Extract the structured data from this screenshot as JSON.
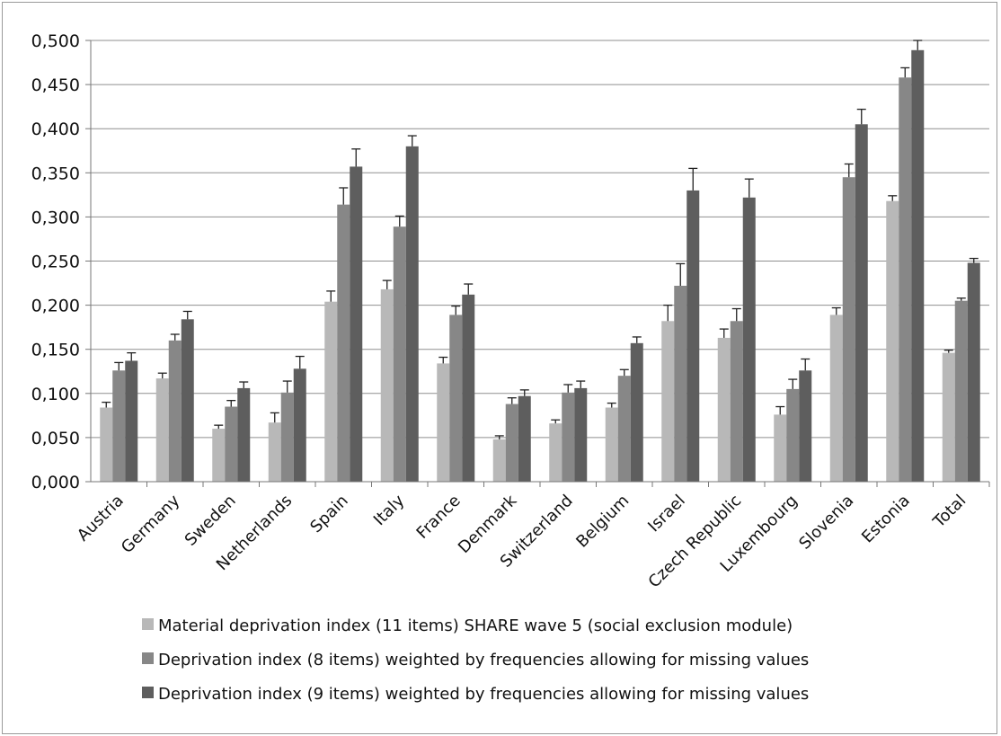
{
  "chart_data": {
    "type": "bar",
    "title": "",
    "xlabel": "",
    "ylabel": "",
    "ylim": [
      0,
      0.5
    ],
    "yticks": [
      "0,000",
      "0,050",
      "0,100",
      "0,150",
      "0,200",
      "0,250",
      "0,300",
      "0,350",
      "0,400",
      "0,450",
      "0,500"
    ],
    "grid": "horizontal",
    "legend_position": "bottom",
    "error_bars": true,
    "categories": [
      "Austria",
      "Germany",
      "Sweden",
      "Netherlands",
      "Spain",
      "Italy",
      "France",
      "Denmark",
      "Switzerland",
      "Belgium",
      "Israel",
      "Czech Republic",
      "Luxembourg",
      "Slovenia",
      "Estonia",
      "Total"
    ],
    "series": [
      {
        "name": "Material deprivation index (11 items) SHARE wave 5 (social exclusion module)",
        "color": "#b8b8b8",
        "values": [
          0.084,
          0.117,
          0.06,
          0.067,
          0.204,
          0.218,
          0.134,
          0.048,
          0.066,
          0.084,
          0.182,
          0.163,
          0.076,
          0.189,
          0.318,
          0.146
        ],
        "error": [
          0.006,
          0.006,
          0.004,
          0.011,
          0.012,
          0.01,
          0.007,
          0.004,
          0.004,
          0.005,
          0.018,
          0.01,
          0.009,
          0.008,
          0.006,
          0.003
        ]
      },
      {
        "name": "Deprivation index (8 items) weighted by frequencies allowing for missing values",
        "color": "#878787",
        "values": [
          0.126,
          0.16,
          0.085,
          0.101,
          0.314,
          0.289,
          0.189,
          0.088,
          0.101,
          0.12,
          0.222,
          0.182,
          0.105,
          0.345,
          0.458,
          0.205
        ],
        "error": [
          0.009,
          0.007,
          0.007,
          0.013,
          0.019,
          0.012,
          0.01,
          0.007,
          0.009,
          0.007,
          0.025,
          0.014,
          0.011,
          0.015,
          0.011,
          0.003
        ]
      },
      {
        "name": "Deprivation index (9 items) weighted by frequencies allowing for missing values",
        "color": "#5e5e5e",
        "values": [
          0.137,
          0.184,
          0.106,
          0.128,
          0.357,
          0.38,
          0.212,
          0.097,
          0.106,
          0.157,
          0.33,
          0.322,
          0.126,
          0.405,
          0.489,
          0.248
        ],
        "error": [
          0.009,
          0.009,
          0.007,
          0.014,
          0.02,
          0.012,
          0.012,
          0.007,
          0.008,
          0.007,
          0.025,
          0.021,
          0.013,
          0.017,
          0.011,
          0.005
        ]
      }
    ]
  }
}
